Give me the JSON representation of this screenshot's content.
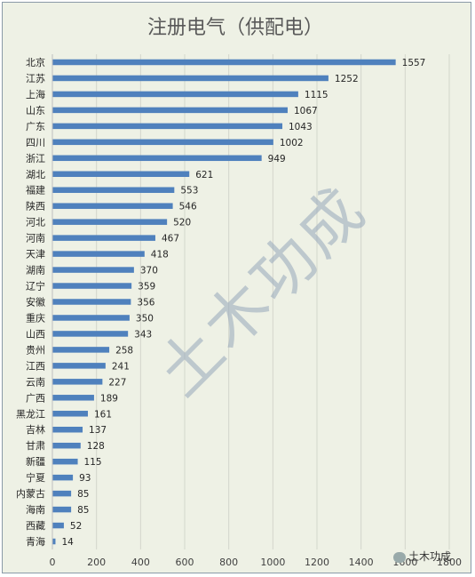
{
  "chart_data": {
    "type": "bar",
    "orientation": "horizontal",
    "title": "注册电气（供配电）",
    "categories": [
      "北京",
      "江苏",
      "上海",
      "山东",
      "广东",
      "四川",
      "浙江",
      "湖北",
      "福建",
      "陕西",
      "河北",
      "河南",
      "天津",
      "湖南",
      "辽宁",
      "安徽",
      "重庆",
      "山西",
      "贵州",
      "江西",
      "云南",
      "广西",
      "黑龙江",
      "吉林",
      "甘肃",
      "新疆",
      "宁夏",
      "内蒙古",
      "海南",
      "西藏",
      "青海"
    ],
    "values": [
      1557,
      1252,
      1115,
      1067,
      1043,
      1002,
      949,
      621,
      553,
      546,
      520,
      467,
      418,
      370,
      359,
      356,
      350,
      343,
      258,
      241,
      227,
      189,
      161,
      137,
      128,
      115,
      93,
      85,
      85,
      52,
      14
    ],
    "xticks": [
      "0",
      "200",
      "400",
      "600",
      "800",
      "1000",
      "1200",
      "1400",
      "1600",
      "1800"
    ],
    "xlim": [
      0,
      1800
    ],
    "grid": true,
    "bar_color": "#4f81bd"
  },
  "watermark": "土木功成",
  "badge": "土木功成"
}
